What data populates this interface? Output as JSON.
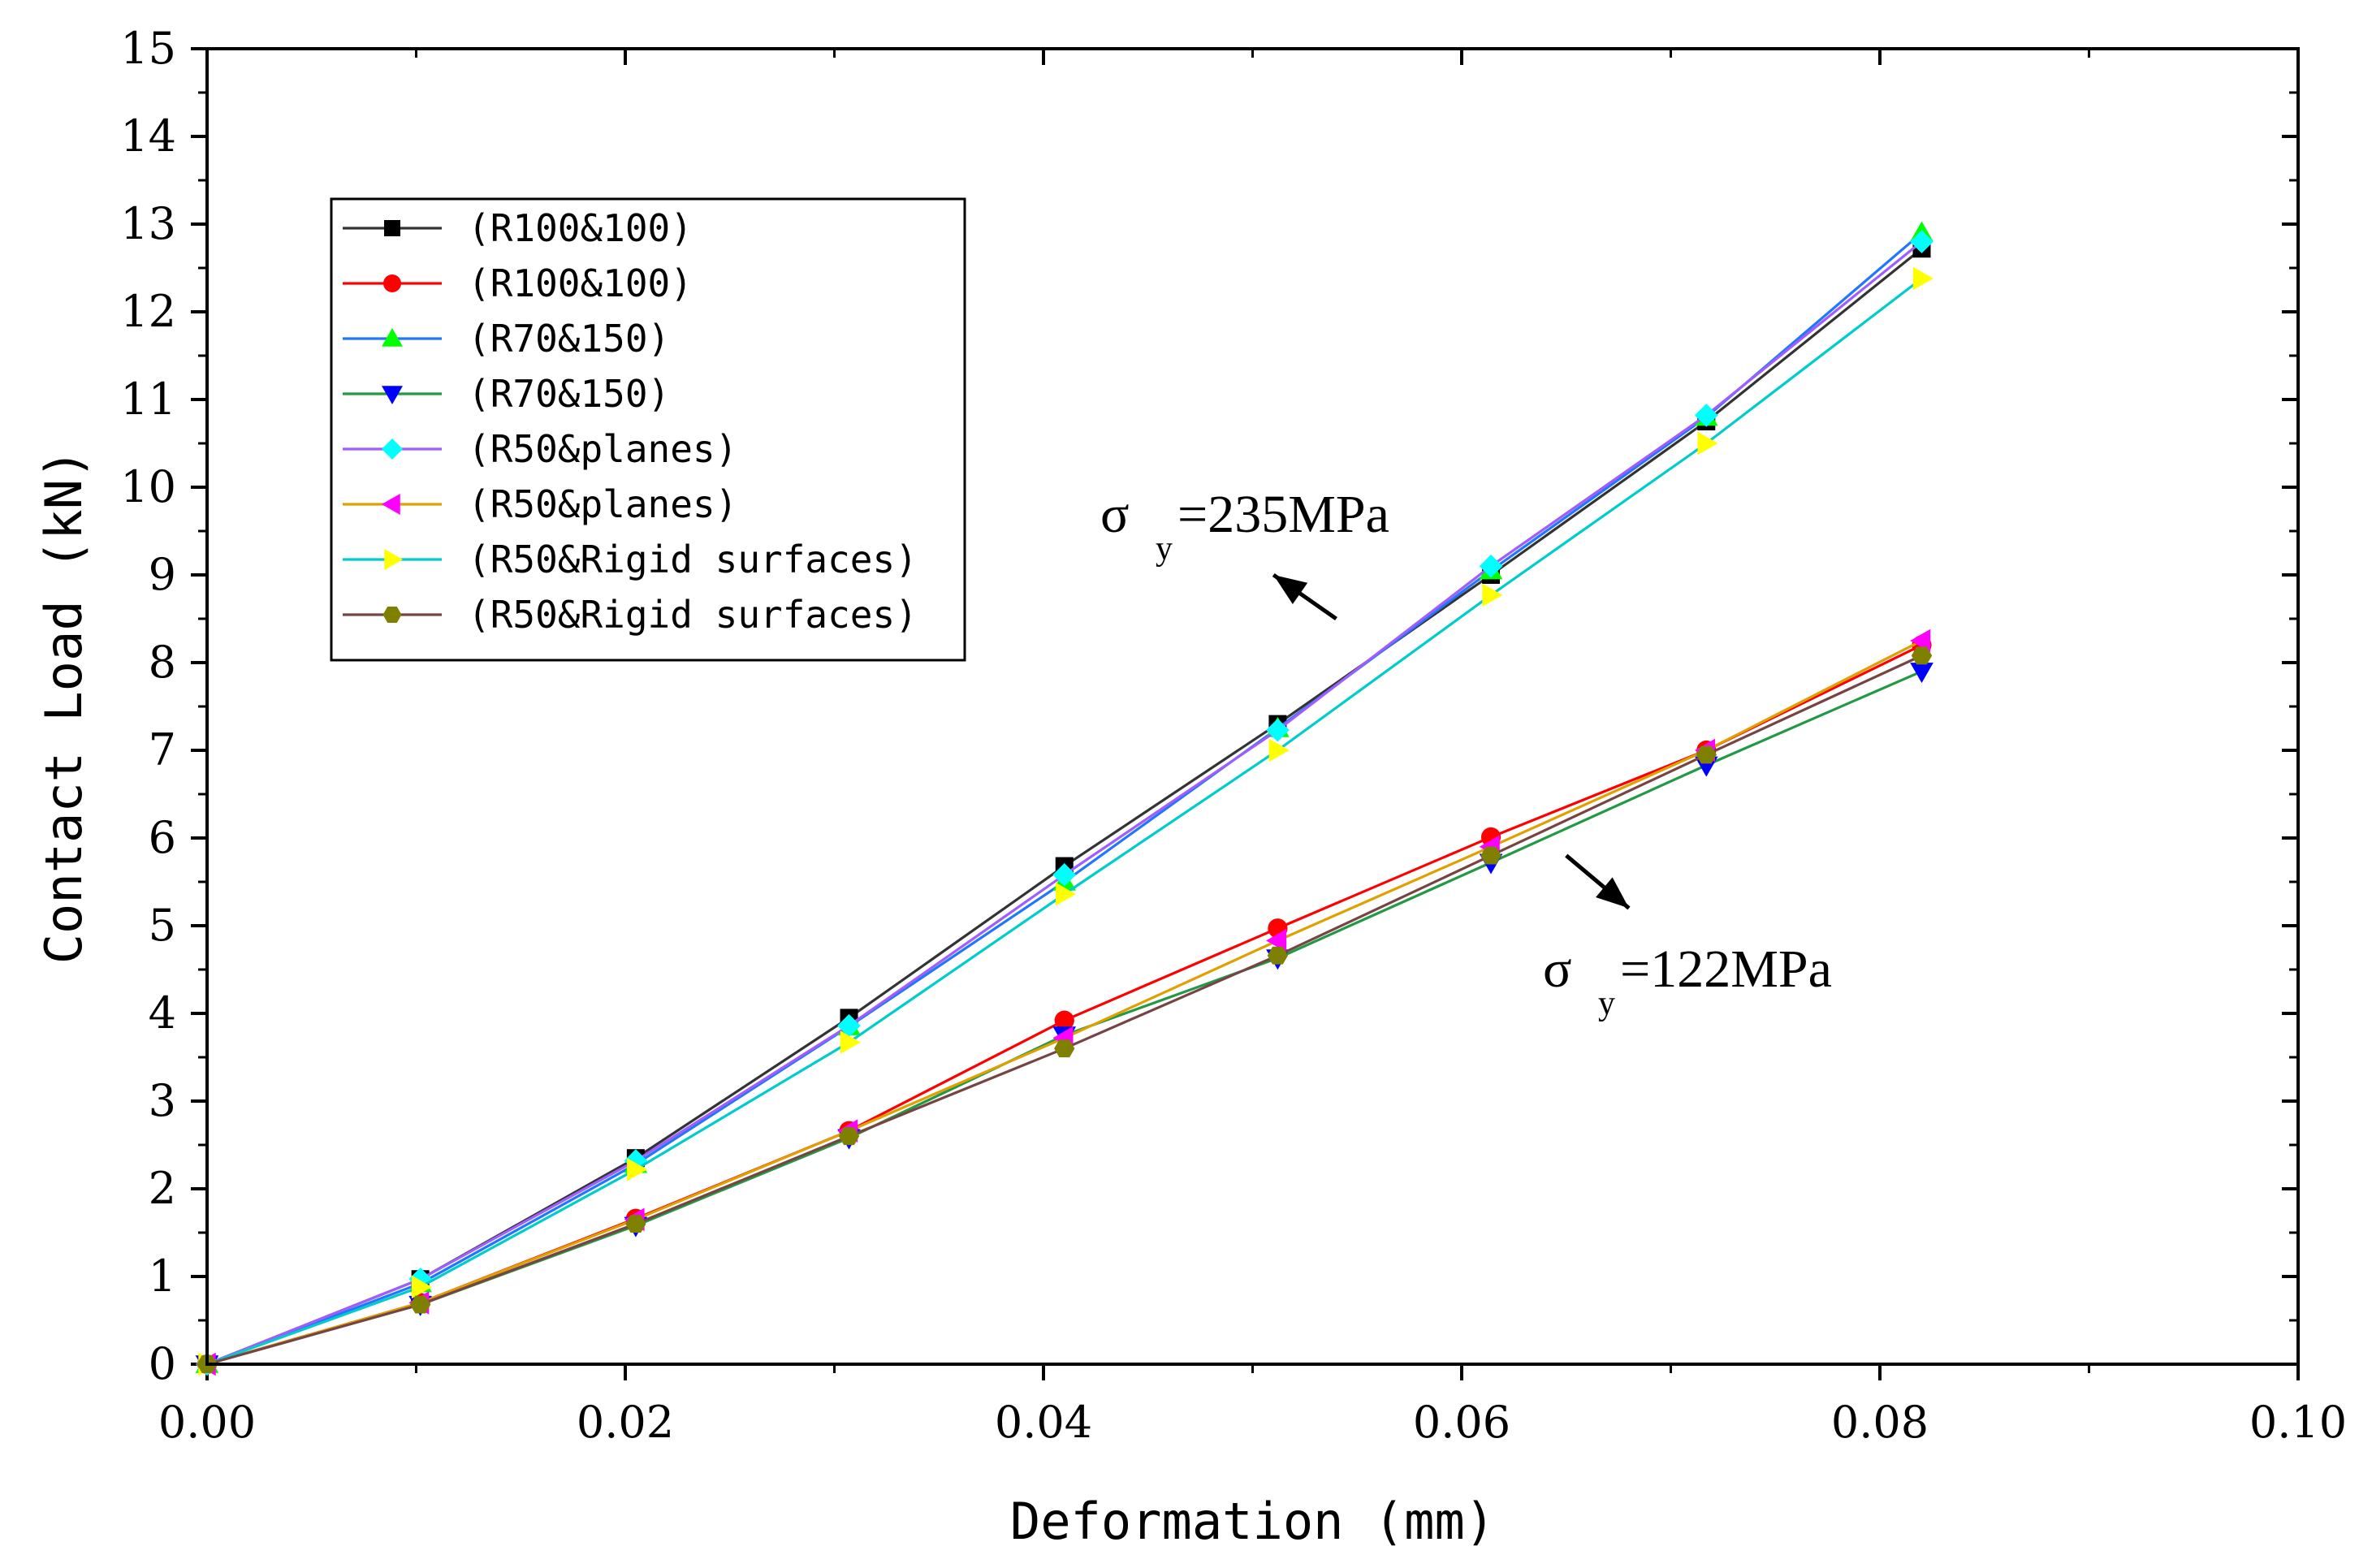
{
  "chart_data": {
    "type": "line",
    "title": "",
    "xlabel": "Deformation (mm)",
    "ylabel": "Contact Load (kN)",
    "xlim": [
      0,
      0.1
    ],
    "ylim": [
      0,
      15
    ],
    "x_ticks": [
      "0.00",
      "0.02",
      "0.04",
      "0.06",
      "0.08",
      "0.10"
    ],
    "y_ticks": [
      "0",
      "1",
      "2",
      "3",
      "4",
      "5",
      "6",
      "7",
      "8",
      "9",
      "10",
      "11",
      "12",
      "13",
      "14",
      "15"
    ],
    "x": [
      0,
      0.0102,
      0.0205,
      0.0307,
      0.041,
      0.0512,
      0.0614,
      0.0717,
      0.082
    ],
    "legend_position": "top-left",
    "series": [
      {
        "name": "(R100&100)",
        "color": "#000000",
        "line_color": "#333333",
        "marker": "square",
        "values": [
          0,
          0.97,
          2.35,
          3.95,
          5.68,
          7.3,
          9.0,
          10.75,
          12.72
        ]
      },
      {
        "name": "(R100&100)",
        "color": "#ff0000",
        "line_color": "#ff0000",
        "marker": "circle",
        "values": [
          0,
          0.7,
          1.66,
          2.66,
          3.92,
          4.97,
          6.01,
          7.0,
          8.2
        ]
      },
      {
        "name": "(R70&150)",
        "color": "#00ff00",
        "line_color": "#1f77ff",
        "marker": "triangle-up",
        "values": [
          0,
          0.92,
          2.28,
          3.85,
          5.5,
          7.25,
          9.05,
          10.8,
          12.9
        ]
      },
      {
        "name": "(R70&150)",
        "color": "#0000ff",
        "line_color": "#229944",
        "marker": "triangle-down",
        "values": [
          0,
          0.68,
          1.58,
          2.58,
          3.75,
          4.63,
          5.72,
          6.83,
          7.9
        ]
      },
      {
        "name": "(R50&planes)",
        "color": "#00ffff",
        "line_color": "#a05cff",
        "marker": "diamond",
        "values": [
          0,
          0.97,
          2.32,
          3.86,
          5.58,
          7.23,
          9.1,
          10.82,
          12.8
        ]
      },
      {
        "name": "(R50&planes)",
        "color": "#ff00ff",
        "line_color": "#e0a000",
        "marker": "triangle-left",
        "values": [
          0,
          0.7,
          1.65,
          2.66,
          3.72,
          4.83,
          5.9,
          7.0,
          8.25
        ]
      },
      {
        "name": "(R50&Rigid surfaces)",
        "color": "#ffff00",
        "line_color": "#00cccc",
        "marker": "triangle-right",
        "values": [
          0,
          0.88,
          2.22,
          3.67,
          5.36,
          7.0,
          8.77,
          10.5,
          12.38
        ]
      },
      {
        "name": "(R50&Rigid surfaces)",
        "color": "#808000",
        "line_color": "#774444",
        "marker": "hexagon",
        "values": [
          0,
          0.68,
          1.6,
          2.6,
          3.6,
          4.66,
          5.8,
          6.95,
          8.08
        ]
      }
    ],
    "annotations": [
      {
        "sigma": "σ",
        "sub": "y",
        "text": "=235MPa",
        "arrow_from": [
          0.054,
          8.5
        ],
        "arrow_to": [
          0.051,
          9.0
        ]
      },
      {
        "sigma": "σ",
        "sub": "y",
        "text": "=122MPa",
        "arrow_from": [
          0.065,
          5.8
        ],
        "arrow_to": [
          0.068,
          5.2
        ]
      }
    ]
  }
}
